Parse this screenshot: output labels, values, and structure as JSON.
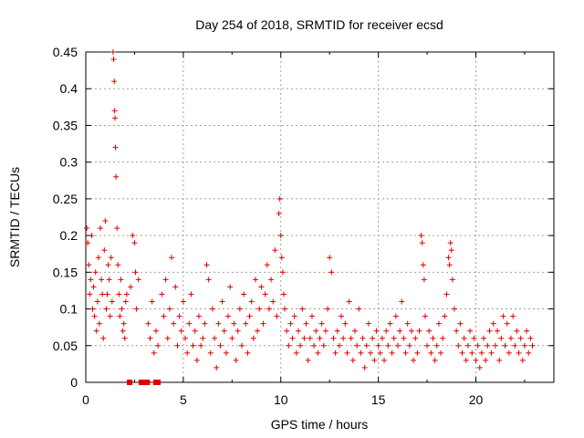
{
  "chart_data": {
    "type": "scatter",
    "title": "Day 254 of 2018, SRMTID for receiver ecsd",
    "xlabel": "GPS time / hours",
    "ylabel": "SRMTID / TECUs",
    "xlim": [
      0,
      24
    ],
    "ylim": [
      0,
      0.45
    ],
    "x_ticks": [
      0,
      5,
      10,
      15,
      20
    ],
    "x_tick_labels": [
      "0",
      "5",
      "10",
      "15",
      "20"
    ],
    "y_ticks": [
      0,
      0.05,
      0.1,
      0.15,
      0.2,
      0.25,
      0.3,
      0.35,
      0.4,
      0.45
    ],
    "y_tick_labels": [
      "0",
      "0.05",
      "0.1",
      "0.15",
      "0.2",
      "0.25",
      "0.3",
      "0.35",
      "0.4",
      "0.45"
    ],
    "grid": true,
    "marker": "plus",
    "color": "#e00000",
    "series": [
      {
        "name": "SRMTID",
        "points": [
          [
            0.05,
            0.21
          ],
          [
            0.1,
            0.19
          ],
          [
            0.15,
            0.16
          ],
          [
            0.2,
            0.12
          ],
          [
            0.25,
            0.14
          ],
          [
            0.3,
            0.2
          ],
          [
            0.35,
            0.1
          ],
          [
            0.4,
            0.13
          ],
          [
            0.45,
            0.09
          ],
          [
            0.5,
            0.15
          ],
          [
            0.55,
            0.07
          ],
          [
            0.6,
            0.11
          ],
          [
            0.65,
            0.17
          ],
          [
            0.7,
            0.08
          ],
          [
            0.75,
            0.21
          ],
          [
            0.8,
            0.14
          ],
          [
            0.85,
            0.12
          ],
          [
            0.9,
            0.06
          ],
          [
            0.95,
            0.18
          ],
          [
            1.0,
            0.22
          ],
          [
            1.05,
            0.1
          ],
          [
            1.1,
            0.12
          ],
          [
            1.15,
            0.16
          ],
          [
            1.2,
            0.14
          ],
          [
            1.25,
            0.09
          ],
          [
            1.3,
            0.17
          ],
          [
            1.35,
            0.11
          ],
          [
            1.4,
            0.45
          ],
          [
            1.43,
            0.44
          ],
          [
            1.46,
            0.41
          ],
          [
            1.48,
            0.37
          ],
          [
            1.5,
            0.36
          ],
          [
            1.52,
            0.32
          ],
          [
            1.55,
            0.28
          ],
          [
            1.6,
            0.21
          ],
          [
            1.65,
            0.16
          ],
          [
            1.7,
            0.12
          ],
          [
            1.75,
            0.09
          ],
          [
            1.8,
            0.14
          ],
          [
            1.85,
            0.1
          ],
          [
            1.9,
            0.07
          ],
          [
            1.95,
            0.08
          ],
          [
            2.0,
            0.06
          ],
          [
            2.05,
            0.11
          ],
          [
            2.1,
            0.12
          ],
          [
            2.3,
            0.13
          ],
          [
            2.4,
            0.2
          ],
          [
            2.5,
            0.19
          ],
          [
            2.55,
            0.15
          ],
          [
            2.6,
            0.1
          ],
          [
            2.7,
            0.14
          ],
          [
            3.2,
            0.08
          ],
          [
            3.3,
            0.06
          ],
          [
            3.4,
            0.11
          ],
          [
            3.5,
            0.04
          ],
          [
            3.6,
            0.07
          ],
          [
            3.7,
            0.05
          ],
          [
            3.9,
            0.12
          ],
          [
            4.0,
            0.09
          ],
          [
            4.1,
            0.14
          ],
          [
            4.2,
            0.06
          ],
          [
            4.3,
            0.1
          ],
          [
            4.4,
            0.17
          ],
          [
            4.5,
            0.08
          ],
          [
            4.6,
            0.13
          ],
          [
            4.7,
            0.05
          ],
          [
            4.8,
            0.09
          ],
          [
            4.9,
            0.07
          ],
          [
            5.0,
            0.11
          ],
          [
            5.1,
            0.06
          ],
          [
            5.2,
            0.04
          ],
          [
            5.3,
            0.08
          ],
          [
            5.4,
            0.12
          ],
          [
            5.5,
            0.05
          ],
          [
            5.6,
            0.07
          ],
          [
            5.7,
            0.03
          ],
          [
            5.8,
            0.09
          ],
          [
            5.9,
            0.05
          ],
          [
            6.0,
            0.06
          ],
          [
            6.1,
            0.08
          ],
          [
            6.2,
            0.16
          ],
          [
            6.3,
            0.14
          ],
          [
            6.4,
            0.04
          ],
          [
            6.5,
            0.1
          ],
          [
            6.6,
            0.06
          ],
          [
            6.7,
            0.02
          ],
          [
            6.8,
            0.08
          ],
          [
            6.9,
            0.05
          ],
          [
            7.0,
            0.11
          ],
          [
            7.1,
            0.07
          ],
          [
            7.2,
            0.04
          ],
          [
            7.3,
            0.09
          ],
          [
            7.4,
            0.13
          ],
          [
            7.5,
            0.06
          ],
          [
            7.6,
            0.08
          ],
          [
            7.7,
            0.03
          ],
          [
            7.8,
            0.07
          ],
          [
            7.9,
            0.1
          ],
          [
            8.0,
            0.05
          ],
          [
            8.1,
            0.12
          ],
          [
            8.2,
            0.08
          ],
          [
            8.3,
            0.04
          ],
          [
            8.4,
            0.09
          ],
          [
            8.5,
            0.11
          ],
          [
            8.6,
            0.06
          ],
          [
            8.7,
            0.14
          ],
          [
            8.8,
            0.07
          ],
          [
            8.9,
            0.1
          ],
          [
            9.0,
            0.13
          ],
          [
            9.1,
            0.08
          ],
          [
            9.2,
            0.12
          ],
          [
            9.3,
            0.16
          ],
          [
            9.4,
            0.1
          ],
          [
            9.5,
            0.14
          ],
          [
            9.6,
            0.11
          ],
          [
            9.7,
            0.18
          ],
          [
            9.8,
            0.09
          ],
          [
            9.9,
            0.23
          ],
          [
            9.95,
            0.25
          ],
          [
            10.0,
            0.2
          ],
          [
            10.05,
            0.17
          ],
          [
            10.1,
            0.15
          ],
          [
            10.15,
            0.12
          ],
          [
            10.2,
            0.1
          ],
          [
            10.3,
            0.07
          ],
          [
            10.4,
            0.05
          ],
          [
            10.5,
            0.08
          ],
          [
            10.6,
            0.06
          ],
          [
            10.7,
            0.09
          ],
          [
            10.8,
            0.04
          ],
          [
            10.9,
            0.07
          ],
          [
            11.0,
            0.05
          ],
          [
            11.1,
            0.1
          ],
          [
            11.2,
            0.06
          ],
          [
            11.3,
            0.08
          ],
          [
            11.4,
            0.03
          ],
          [
            11.5,
            0.06
          ],
          [
            11.6,
            0.09
          ],
          [
            11.7,
            0.05
          ],
          [
            11.8,
            0.07
          ],
          [
            11.9,
            0.04
          ],
          [
            12.0,
            0.06
          ],
          [
            12.1,
            0.08
          ],
          [
            12.2,
            0.05
          ],
          [
            12.3,
            0.07
          ],
          [
            12.4,
            0.1
          ],
          [
            12.5,
            0.17
          ],
          [
            12.6,
            0.15
          ],
          [
            12.7,
            0.06
          ],
          [
            12.8,
            0.04
          ],
          [
            12.9,
            0.07
          ],
          [
            13.0,
            0.05
          ],
          [
            13.1,
            0.09
          ],
          [
            13.2,
            0.06
          ],
          [
            13.3,
            0.08
          ],
          [
            13.4,
            0.04
          ],
          [
            13.5,
            0.11
          ],
          [
            13.6,
            0.06
          ],
          [
            13.7,
            0.03
          ],
          [
            13.8,
            0.07
          ],
          [
            13.9,
            0.05
          ],
          [
            14.0,
            0.1
          ],
          [
            14.1,
            0.04
          ],
          [
            14.2,
            0.06
          ],
          [
            14.3,
            0.02
          ],
          [
            14.4,
            0.05
          ],
          [
            14.5,
            0.08
          ],
          [
            14.6,
            0.04
          ],
          [
            14.7,
            0.06
          ],
          [
            14.8,
            0.03
          ],
          [
            14.9,
            0.07
          ],
          [
            15.0,
            0.05
          ],
          [
            15.1,
            0.04
          ],
          [
            15.2,
            0.06
          ],
          [
            15.3,
            0.03
          ],
          [
            15.4,
            0.07
          ],
          [
            15.5,
            0.05
          ],
          [
            15.6,
            0.08
          ],
          [
            15.7,
            0.04
          ],
          [
            15.8,
            0.06
          ],
          [
            15.9,
            0.09
          ],
          [
            16.0,
            0.05
          ],
          [
            16.1,
            0.07
          ],
          [
            16.2,
            0.11
          ],
          [
            16.3,
            0.06
          ],
          [
            16.4,
            0.04
          ],
          [
            16.5,
            0.08
          ],
          [
            16.6,
            0.05
          ],
          [
            16.7,
            0.07
          ],
          [
            16.8,
            0.03
          ],
          [
            16.9,
            0.06
          ],
          [
            17.0,
            0.04
          ],
          [
            17.1,
            0.07
          ],
          [
            17.2,
            0.2
          ],
          [
            17.25,
            0.19
          ],
          [
            17.3,
            0.16
          ],
          [
            17.35,
            0.14
          ],
          [
            17.4,
            0.09
          ],
          [
            17.5,
            0.05
          ],
          [
            17.6,
            0.07
          ],
          [
            17.7,
            0.04
          ],
          [
            17.8,
            0.06
          ],
          [
            17.9,
            0.03
          ],
          [
            18.0,
            0.05
          ],
          [
            18.1,
            0.08
          ],
          [
            18.2,
            0.04
          ],
          [
            18.3,
            0.06
          ],
          [
            18.4,
            0.09
          ],
          [
            18.5,
            0.12
          ],
          [
            18.6,
            0.17
          ],
          [
            18.65,
            0.16
          ],
          [
            18.7,
            0.19
          ],
          [
            18.75,
            0.18
          ],
          [
            18.8,
            0.14
          ],
          [
            18.9,
            0.1
          ],
          [
            19.0,
            0.07
          ],
          [
            19.1,
            0.05
          ],
          [
            19.2,
            0.08
          ],
          [
            19.3,
            0.04
          ],
          [
            19.4,
            0.06
          ],
          [
            19.5,
            0.03
          ],
          [
            19.6,
            0.05
          ],
          [
            19.7,
            0.07
          ],
          [
            19.8,
            0.04
          ],
          [
            19.9,
            0.06
          ],
          [
            20.0,
            0.03
          ],
          [
            20.1,
            0.05
          ],
          [
            20.2,
            0.02
          ],
          [
            20.3,
            0.04
          ],
          [
            20.4,
            0.06
          ],
          [
            20.5,
            0.03
          ],
          [
            20.6,
            0.05
          ],
          [
            20.7,
            0.07
          ],
          [
            20.8,
            0.04
          ],
          [
            20.9,
            0.08
          ],
          [
            21.0,
            0.05
          ],
          [
            21.1,
            0.07
          ],
          [
            21.2,
            0.03
          ],
          [
            21.3,
            0.06
          ],
          [
            21.4,
            0.09
          ],
          [
            21.5,
            0.05
          ],
          [
            21.6,
            0.08
          ],
          [
            21.7,
            0.04
          ],
          [
            21.8,
            0.06
          ],
          [
            21.9,
            0.09
          ],
          [
            22.0,
            0.05
          ],
          [
            22.1,
            0.07
          ],
          [
            22.2,
            0.04
          ],
          [
            22.3,
            0.06
          ],
          [
            22.4,
            0.03
          ],
          [
            22.5,
            0.05
          ],
          [
            22.6,
            0.07
          ],
          [
            22.7,
            0.04
          ],
          [
            22.8,
            0.06
          ],
          [
            22.9,
            0.05
          ]
        ]
      }
    ],
    "zero_markers_x": [
      2.25,
      2.85,
      2.95,
      3.05,
      3.15,
      3.6,
      3.7
    ]
  }
}
